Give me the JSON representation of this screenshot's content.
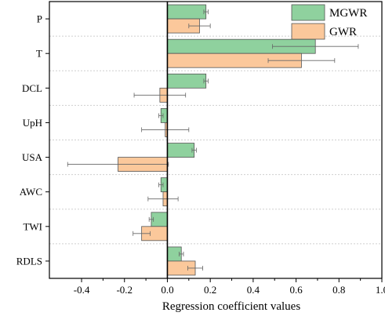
{
  "chart_data": {
    "type": "bar",
    "orientation": "horizontal",
    "categories": [
      "P",
      "T",
      "DCL",
      "UpH",
      "USA",
      "AWC",
      "TWI",
      "RDLS"
    ],
    "series": [
      {
        "name": "MGWR",
        "color": "#8fd19e",
        "values": [
          0.18,
          0.69,
          0.18,
          -0.03,
          0.125,
          -0.03,
          -0.075,
          0.065
        ],
        "errors": [
          0.01,
          0.2,
          0.01,
          0.01,
          0.01,
          0.01,
          0.01,
          0.01
        ]
      },
      {
        "name": "GWR",
        "color": "#fbc89b",
        "values": [
          0.15,
          0.625,
          -0.035,
          -0.01,
          -0.23,
          -0.02,
          -0.12,
          0.13
        ],
        "errors": [
          0.05,
          0.155,
          0.12,
          0.11,
          0.235,
          0.07,
          0.04,
          0.035
        ]
      }
    ],
    "xlabel": "Regression coefficient values",
    "xlim": [
      -0.55,
      1.0
    ],
    "xticks": [
      "-0.4",
      "-0.2",
      "0.0",
      "0.2",
      "0.4",
      "0.6",
      "0.8",
      "1.0"
    ],
    "grid": "dashed horizontal separators between categories",
    "legend_position": "top-right",
    "edge_color": "#555555",
    "error_bar_color": "#666666"
  }
}
